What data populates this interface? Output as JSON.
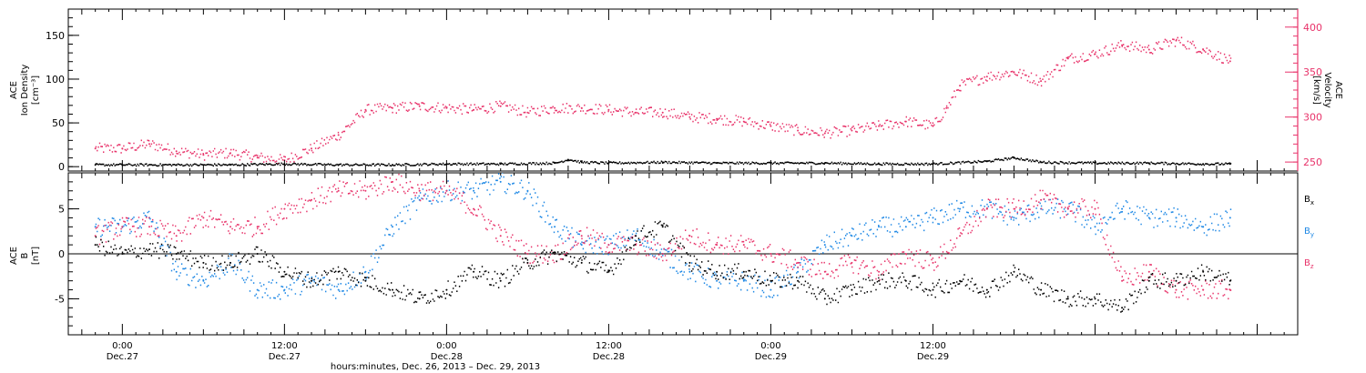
{
  "chart_data": [
    {
      "type": "scatter",
      "panel": "top",
      "left_axis": {
        "label_lines": [
          "ACE",
          "Ion Density",
          "[cm⁻³]"
        ],
        "ticks": [
          0,
          50,
          100,
          150
        ],
        "ylim": [
          -5,
          180
        ]
      },
      "right_axis": {
        "label_lines": [
          "ACE",
          "Velocity",
          "[km/s]"
        ],
        "ticks": [
          250,
          300,
          350,
          400
        ],
        "ylim": [
          240,
          420
        ],
        "color": "#e8336a"
      },
      "series": [
        {
          "axis": "left",
          "color": "#000000",
          "x": [
            -2,
            0,
            4,
            8,
            12,
            16,
            20,
            24,
            28,
            32,
            33,
            34,
            36,
            40,
            44,
            48,
            52,
            56,
            60,
            64,
            66,
            68,
            72,
            76,
            80,
            82
          ],
          "y": [
            2,
            2,
            2,
            2,
            3,
            2,
            2,
            3,
            3,
            4,
            8,
            5,
            4,
            5,
            4,
            4,
            4,
            3,
            3,
            6,
            10,
            5,
            4,
            4,
            3,
            3
          ]
        },
        {
          "axis": "right",
          "color": "#e8336a",
          "x": [
            -2,
            0,
            2,
            4,
            6,
            8,
            10,
            12,
            14,
            16,
            18,
            20,
            22,
            24,
            26,
            28,
            30,
            32,
            34,
            36,
            38,
            40,
            42,
            44,
            46,
            48,
            50,
            52,
            54,
            56,
            58,
            60,
            61,
            62,
            64,
            66,
            68,
            70,
            72,
            74,
            76,
            78,
            80,
            82
          ],
          "y": [
            265,
            265,
            270,
            262,
            258,
            260,
            255,
            252,
            265,
            280,
            308,
            310,
            312,
            310,
            308,
            312,
            305,
            310,
            310,
            308,
            305,
            305,
            300,
            298,
            295,
            290,
            285,
            282,
            285,
            290,
            295,
            290,
            310,
            335,
            345,
            350,
            340,
            365,
            370,
            380,
            375,
            385,
            375,
            362
          ]
        }
      ]
    },
    {
      "type": "scatter",
      "panel": "bottom",
      "left_axis": {
        "label_lines": [
          "ACE",
          "B",
          "[nT]"
        ],
        "ticks": [
          -5,
          0,
          5
        ],
        "ylim": [
          -9,
          9
        ]
      },
      "legend": [
        {
          "text": "B",
          "sub": "x",
          "color": "#000000"
        },
        {
          "text": "B",
          "sub": "y",
          "color": "#1e88e5"
        },
        {
          "text": "B",
          "sub": "z",
          "color": "#e8336a"
        }
      ],
      "series": [
        {
          "name": "Bx",
          "color": "#000000",
          "x": [
            -2,
            0,
            2,
            4,
            6,
            8,
            10,
            12,
            14,
            16,
            18,
            20,
            22,
            24,
            26,
            28,
            30,
            32,
            34,
            36,
            38,
            40,
            42,
            44,
            46,
            48,
            50,
            52,
            54,
            56,
            58,
            60,
            62,
            64,
            66,
            68,
            70,
            72,
            74,
            76,
            78,
            80,
            82
          ],
          "y": [
            1,
            0,
            0.5,
            0,
            -1,
            -1,
            0,
            -2,
            -3,
            -2,
            -3,
            -4,
            -5,
            -4,
            -2,
            -3,
            -1,
            0,
            -1,
            -2,
            2,
            3,
            -1,
            -2,
            -2,
            -3,
            -3,
            -5,
            -4,
            -3,
            -3,
            -4,
            -3,
            -4,
            -2,
            -4,
            -5,
            -5,
            -6,
            -3,
            -3,
            -2,
            -3
          ]
        },
        {
          "name": "By",
          "color": "#1e88e5",
          "x": [
            -2,
            0,
            2,
            4,
            6,
            8,
            10,
            12,
            14,
            16,
            18,
            20,
            22,
            24,
            26,
            28,
            30,
            32,
            34,
            36,
            38,
            40,
            42,
            44,
            46,
            48,
            50,
            52,
            54,
            56,
            58,
            60,
            62,
            64,
            66,
            68,
            70,
            72,
            74,
            76,
            78,
            80,
            82
          ],
          "y": [
            3,
            3,
            4,
            -2,
            -3,
            -1,
            -4,
            -4,
            -3,
            -4,
            -2,
            3,
            6,
            7,
            7,
            8,
            7,
            3,
            1,
            1,
            2,
            0,
            -2,
            -3,
            -3,
            -4,
            -2,
            1,
            2,
            3,
            3,
            4,
            5,
            5,
            4,
            5,
            5,
            3,
            5,
            4,
            4,
            3,
            4
          ]
        },
        {
          "name": "Bz",
          "color": "#e8336a",
          "x": [
            -2,
            0,
            2,
            4,
            6,
            8,
            10,
            12,
            14,
            16,
            18,
            20,
            22,
            24,
            26,
            28,
            30,
            32,
            34,
            36,
            38,
            40,
            42,
            44,
            46,
            48,
            50,
            52,
            54,
            56,
            58,
            60,
            62,
            64,
            66,
            68,
            70,
            72,
            74,
            76,
            78,
            80,
            82
          ],
          "y": [
            2,
            3,
            3,
            2,
            4,
            3,
            3,
            5,
            6,
            7,
            7,
            8,
            7,
            7,
            5,
            2,
            0,
            0,
            2,
            1,
            1,
            0,
            2,
            1,
            1,
            0,
            -1,
            -2,
            -1,
            -2,
            0,
            -1,
            2,
            5,
            5,
            6,
            5,
            5,
            -3,
            -2,
            -4,
            -4,
            -4
          ]
        }
      ]
    }
  ],
  "x_axis": {
    "xlim": [
      -4,
      87
    ],
    "ticks": [
      {
        "x": 0,
        "time": "0:00",
        "date": "Dec.27"
      },
      {
        "x": 12,
        "time": "12:00",
        "date": "Dec.27"
      },
      {
        "x": 24,
        "time": "0:00",
        "date": "Dec.28"
      },
      {
        "x": 36,
        "time": "12:00",
        "date": "Dec.28"
      },
      {
        "x": 48,
        "time": "0:00",
        "date": "Dec.29"
      },
      {
        "x": 60,
        "time": "12:00",
        "date": "Dec.29"
      }
    ],
    "title": "hours:minutes, Dec. 26, 2013 – Dec. 29, 2013"
  }
}
